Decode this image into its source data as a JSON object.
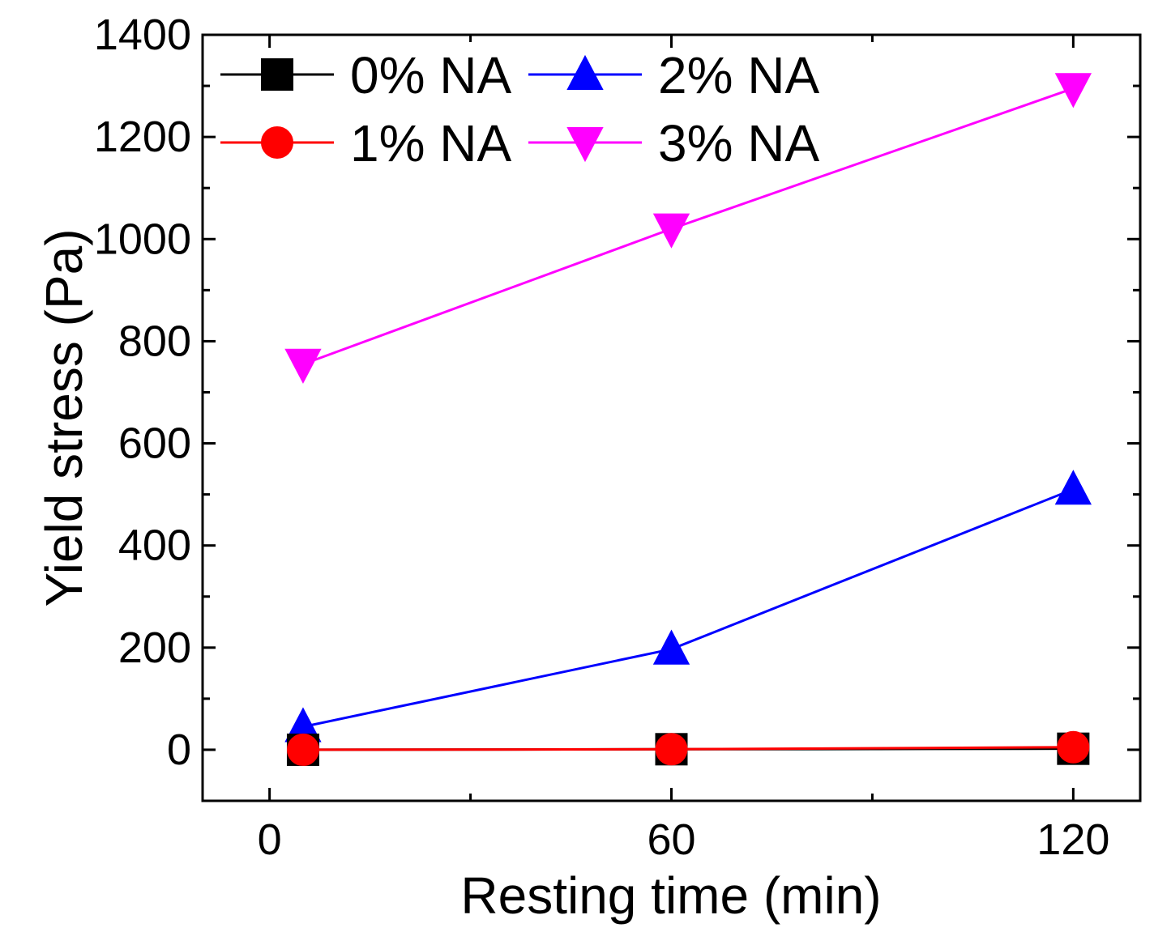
{
  "chart_data": {
    "type": "line",
    "title": "",
    "xlabel": "Resting time (min)",
    "ylabel": "Yield stress (Pa)",
    "xlim": [
      -10,
      130
    ],
    "ylim": [
      -100,
      1400
    ],
    "xticks": [
      0,
      60,
      120
    ],
    "yticks": [
      0,
      200,
      400,
      600,
      800,
      1000,
      1200,
      1400
    ],
    "x": [
      5,
      60,
      120
    ],
    "series": [
      {
        "name": "0% NA",
        "color": "#000000",
        "marker": "square",
        "values": [
          0,
          1,
          2
        ]
      },
      {
        "name": "1% NA",
        "color": "#ff0000",
        "marker": "circle",
        "values": [
          0,
          1,
          5
        ]
      },
      {
        "name": "2% NA",
        "color": "#0000ff",
        "marker": "triangle-up",
        "values": [
          45,
          197,
          510
        ]
      },
      {
        "name": "3% NA",
        "color": "#ff00ff",
        "marker": "triangle-down",
        "values": [
          755,
          1020,
          1295
        ]
      }
    ],
    "legend_position": "top-left",
    "grid": false
  }
}
